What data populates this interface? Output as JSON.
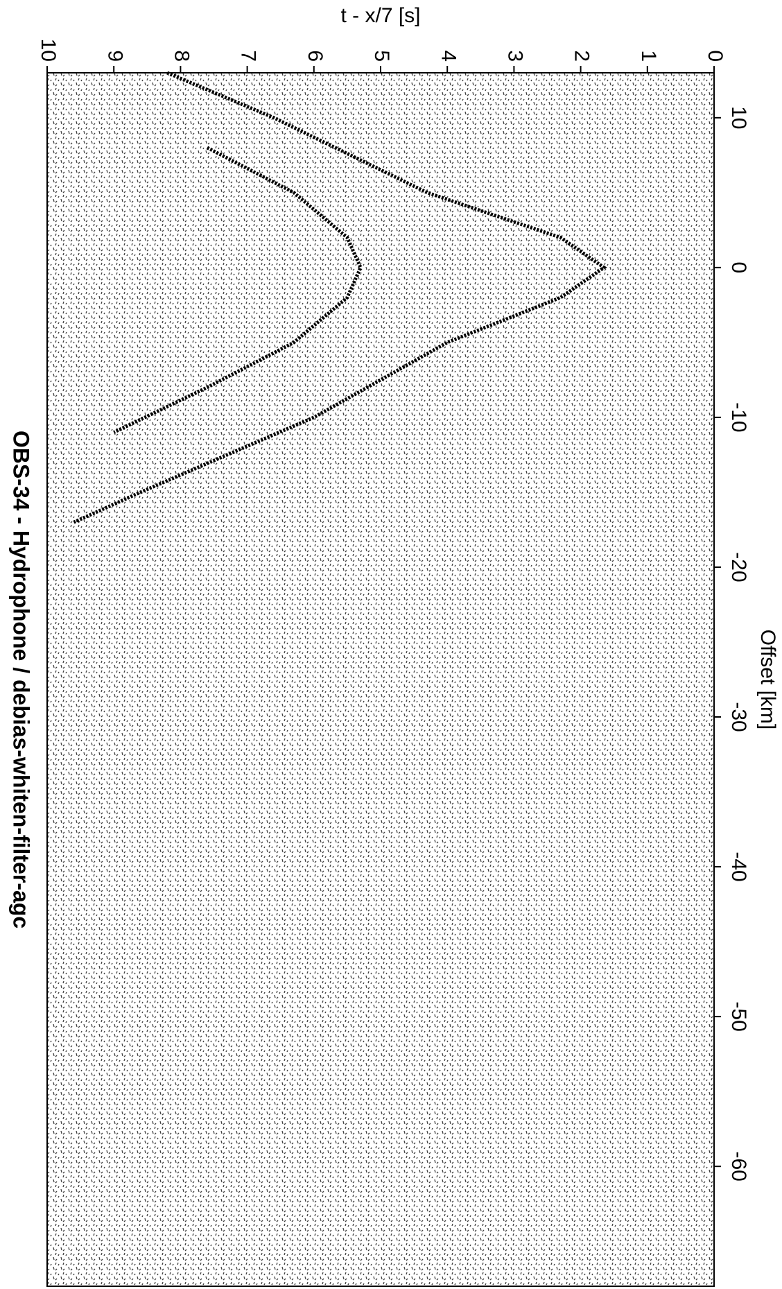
{
  "chart_data": {
    "type": "line",
    "title": "OBS-34  - Hydrophone / debias-whiten-filter-agc",
    "x_label": "Offset [km]",
    "y_label": "t - x/7 [s]",
    "xlim": [
      13,
      -68
    ],
    "xticks": [
      10,
      0,
      -10,
      -20,
      -30,
      -40,
      -50,
      -60
    ],
    "ylim": [
      0,
      10
    ],
    "yticks": [
      0,
      1,
      2,
      3,
      4,
      5,
      6,
      7,
      8,
      9,
      10
    ],
    "series": [
      {
        "color": "#000000",
        "x": [
          13,
          10,
          5,
          2,
          0,
          -2,
          -5,
          -10,
          -15,
          -17
        ],
        "values": [
          8.2,
          6.6,
          4.3,
          2.3,
          1.65,
          2.3,
          4.0,
          6.0,
          8.6,
          9.6
        ]
      },
      {
        "color": "#000000",
        "x": [
          8,
          5,
          2,
          0,
          -2,
          -5,
          -8,
          -11
        ],
        "values": [
          7.6,
          6.3,
          5.5,
          5.3,
          5.5,
          6.3,
          7.6,
          9.0
        ]
      }
    ]
  }
}
